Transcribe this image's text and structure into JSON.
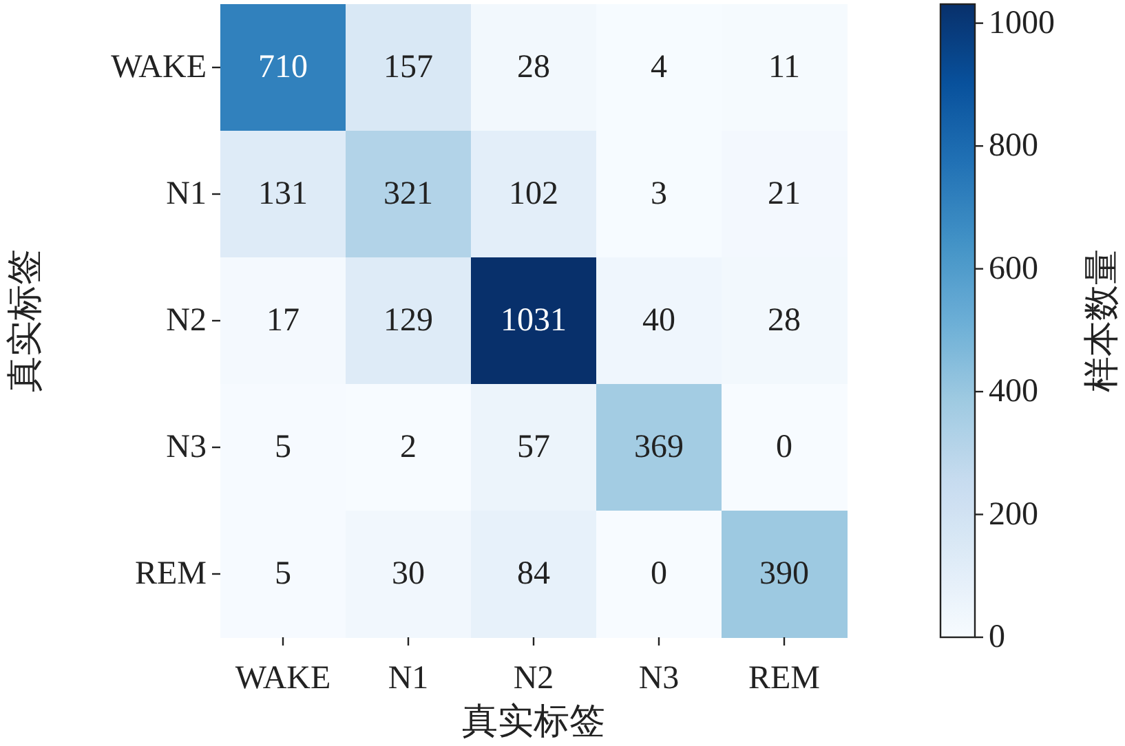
{
  "chart_data": {
    "type": "heatmap",
    "xlabel": "真实标签",
    "ylabel": "真实标签",
    "clabel": "样本数量",
    "categories": [
      "WAKE",
      "N1",
      "N2",
      "N3",
      "REM"
    ],
    "y_categories": [
      "WAKE",
      "N1",
      "N2",
      "N3",
      "REM"
    ],
    "cells": [
      [
        710,
        157,
        28,
        4,
        11
      ],
      [
        131,
        321,
        102,
        3,
        21
      ],
      [
        17,
        129,
        1031,
        40,
        28
      ],
      [
        5,
        2,
        57,
        369,
        0
      ],
      [
        5,
        30,
        84,
        0,
        390
      ]
    ],
    "data_labels": true,
    "clim": [
      0,
      1031
    ],
    "cticks": [
      0,
      200,
      400,
      600,
      800,
      1000
    ]
  }
}
